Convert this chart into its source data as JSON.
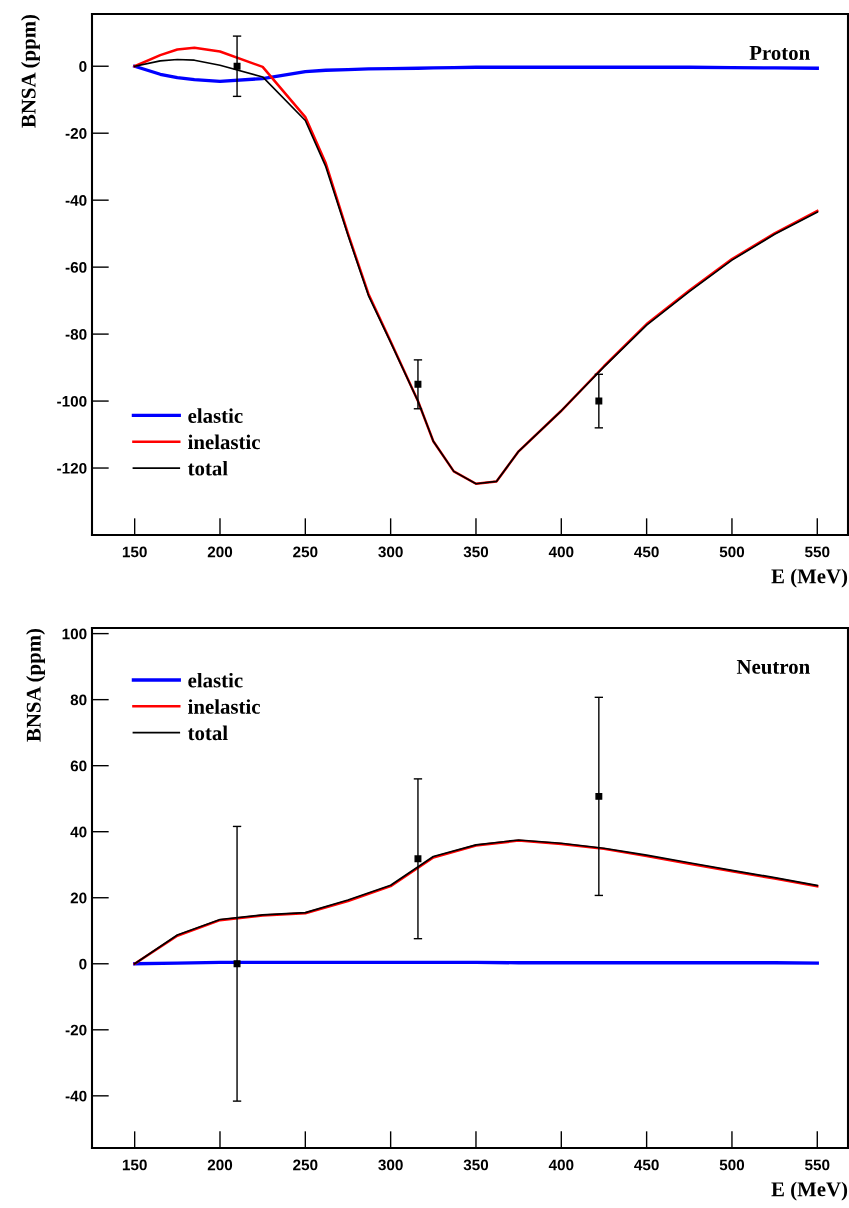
{
  "chart_data": [
    {
      "type": "line",
      "title": "Proton",
      "xlabel": "E (MeV)",
      "ylabel": "BNSA (ppm)",
      "xlim": [
        125,
        568
      ],
      "ylim": [
        -140,
        15.6
      ],
      "xticks": [
        150,
        200,
        250,
        300,
        350,
        400,
        450,
        500,
        550
      ],
      "yticks": [
        -120,
        -100,
        -80,
        -60,
        -40,
        -20,
        0
      ],
      "grid": false,
      "legend": "bottom left",
      "marker": "none",
      "line_style": "solid",
      "series": [
        {
          "name": "elastic",
          "color": "#0000ff",
          "x": [
            150,
            165,
            175,
            185,
            200,
            225,
            250,
            262,
            275,
            287,
            300,
            316,
            325,
            337,
            350,
            362,
            375,
            400,
            425,
            450,
            475,
            500,
            525,
            550
          ],
          "values": [
            0,
            -2.4,
            -3.4,
            -4.0,
            -4.5,
            -3.7,
            -1.6,
            -1.2,
            -1.0,
            -0.8,
            -0.7,
            -0.6,
            -0.5,
            -0.4,
            -0.3,
            -0.3,
            -0.3,
            -0.3,
            -0.3,
            -0.3,
            -0.3,
            -0.4,
            -0.5,
            -0.6
          ]
        },
        {
          "name": "inelastic",
          "color": "#ff0000",
          "x": [
            150,
            165,
            175,
            185,
            200,
            225,
            250,
            262,
            275,
            287,
            300,
            316,
            325,
            337,
            350,
            362,
            375,
            400,
            425,
            450,
            475,
            500,
            525,
            550
          ],
          "values": [
            0,
            3.3,
            5.0,
            5.5,
            4.4,
            -0.2,
            -15.2,
            -29,
            -50,
            -68,
            -82.2,
            -100,
            -112,
            -121,
            -124.7,
            -124,
            -115,
            -102.9,
            -89.6,
            -77,
            -67,
            -57.6,
            -49.9,
            -43.2
          ]
        },
        {
          "name": "total",
          "color": "#000000",
          "x": [
            150,
            165,
            175,
            185,
            200,
            225,
            250,
            262,
            275,
            287,
            300,
            316,
            325,
            337,
            350,
            362,
            375,
            400,
            425,
            450,
            475,
            500,
            525,
            550
          ],
          "values": [
            0,
            1.6,
            2.0,
            1.8,
            0.3,
            -3.2,
            -16.2,
            -30,
            -50.5,
            -68.5,
            -82.5,
            -100,
            -112,
            -121,
            -124.7,
            -124,
            -115,
            -102.9,
            -89.8,
            -77.3,
            -67.3,
            -57.9,
            -50.2,
            -43.6
          ]
        },
        {
          "type": "scatter",
          "color": "#000000",
          "marker": "square",
          "x": [
            210,
            316,
            422
          ],
          "values": [
            0,
            -95,
            -100
          ],
          "errors": [
            9,
            7.3,
            8
          ]
        }
      ]
    },
    {
      "type": "line",
      "title": "Neutron",
      "xlabel": "E (MeV)",
      "ylabel": "BNSA (ppm)",
      "xlim": [
        125,
        568
      ],
      "ylim": [
        -55.8,
        101.7
      ],
      "xticks": [
        150,
        200,
        250,
        300,
        350,
        400,
        450,
        500,
        550
      ],
      "yticks": [
        -40,
        -20,
        0,
        20,
        40,
        60,
        80,
        100
      ],
      "grid": false,
      "legend": "top left",
      "marker": "none",
      "line_style": "solid",
      "series": [
        {
          "name": "elastic",
          "color": "#0000ff",
          "x": [
            150,
            175,
            200,
            225,
            250,
            275,
            300,
            325,
            350,
            375,
            400,
            425,
            450,
            475,
            500,
            525,
            550
          ],
          "values": [
            0,
            0.2,
            0.4,
            0.4,
            0.4,
            0.4,
            0.4,
            0.4,
            0.4,
            0.3,
            0.3,
            0.3,
            0.3,
            0.3,
            0.3,
            0.3,
            0.2
          ]
        },
        {
          "name": "inelastic",
          "color": "#ff0000",
          "x": [
            150,
            175,
            200,
            225,
            250,
            275,
            300,
            325,
            350,
            375,
            400,
            425,
            450,
            475,
            500,
            525,
            550
          ],
          "values": [
            0,
            8.5,
            13.2,
            14.6,
            15.3,
            19.0,
            23.5,
            32.2,
            35.8,
            37.3,
            36.3,
            34.8,
            32.6,
            30.3,
            28.0,
            25.8,
            23.5
          ]
        },
        {
          "name": "total",
          "color": "#000000",
          "x": [
            150,
            175,
            200,
            225,
            250,
            275,
            300,
            325,
            350,
            375,
            400,
            425,
            450,
            475,
            500,
            525,
            550
          ],
          "values": [
            0,
            8.7,
            13.4,
            14.8,
            15.5,
            19.3,
            23.8,
            32.5,
            36.0,
            37.5,
            36.5,
            35.0,
            32.9,
            30.6,
            28.3,
            26.1,
            23.7
          ]
        },
        {
          "type": "scatter",
          "color": "#000000",
          "marker": "square",
          "x": [
            210,
            316,
            422
          ],
          "values": [
            0,
            31.8,
            50.7
          ],
          "errors": [
            41.6,
            24.2,
            30
          ]
        }
      ]
    }
  ]
}
